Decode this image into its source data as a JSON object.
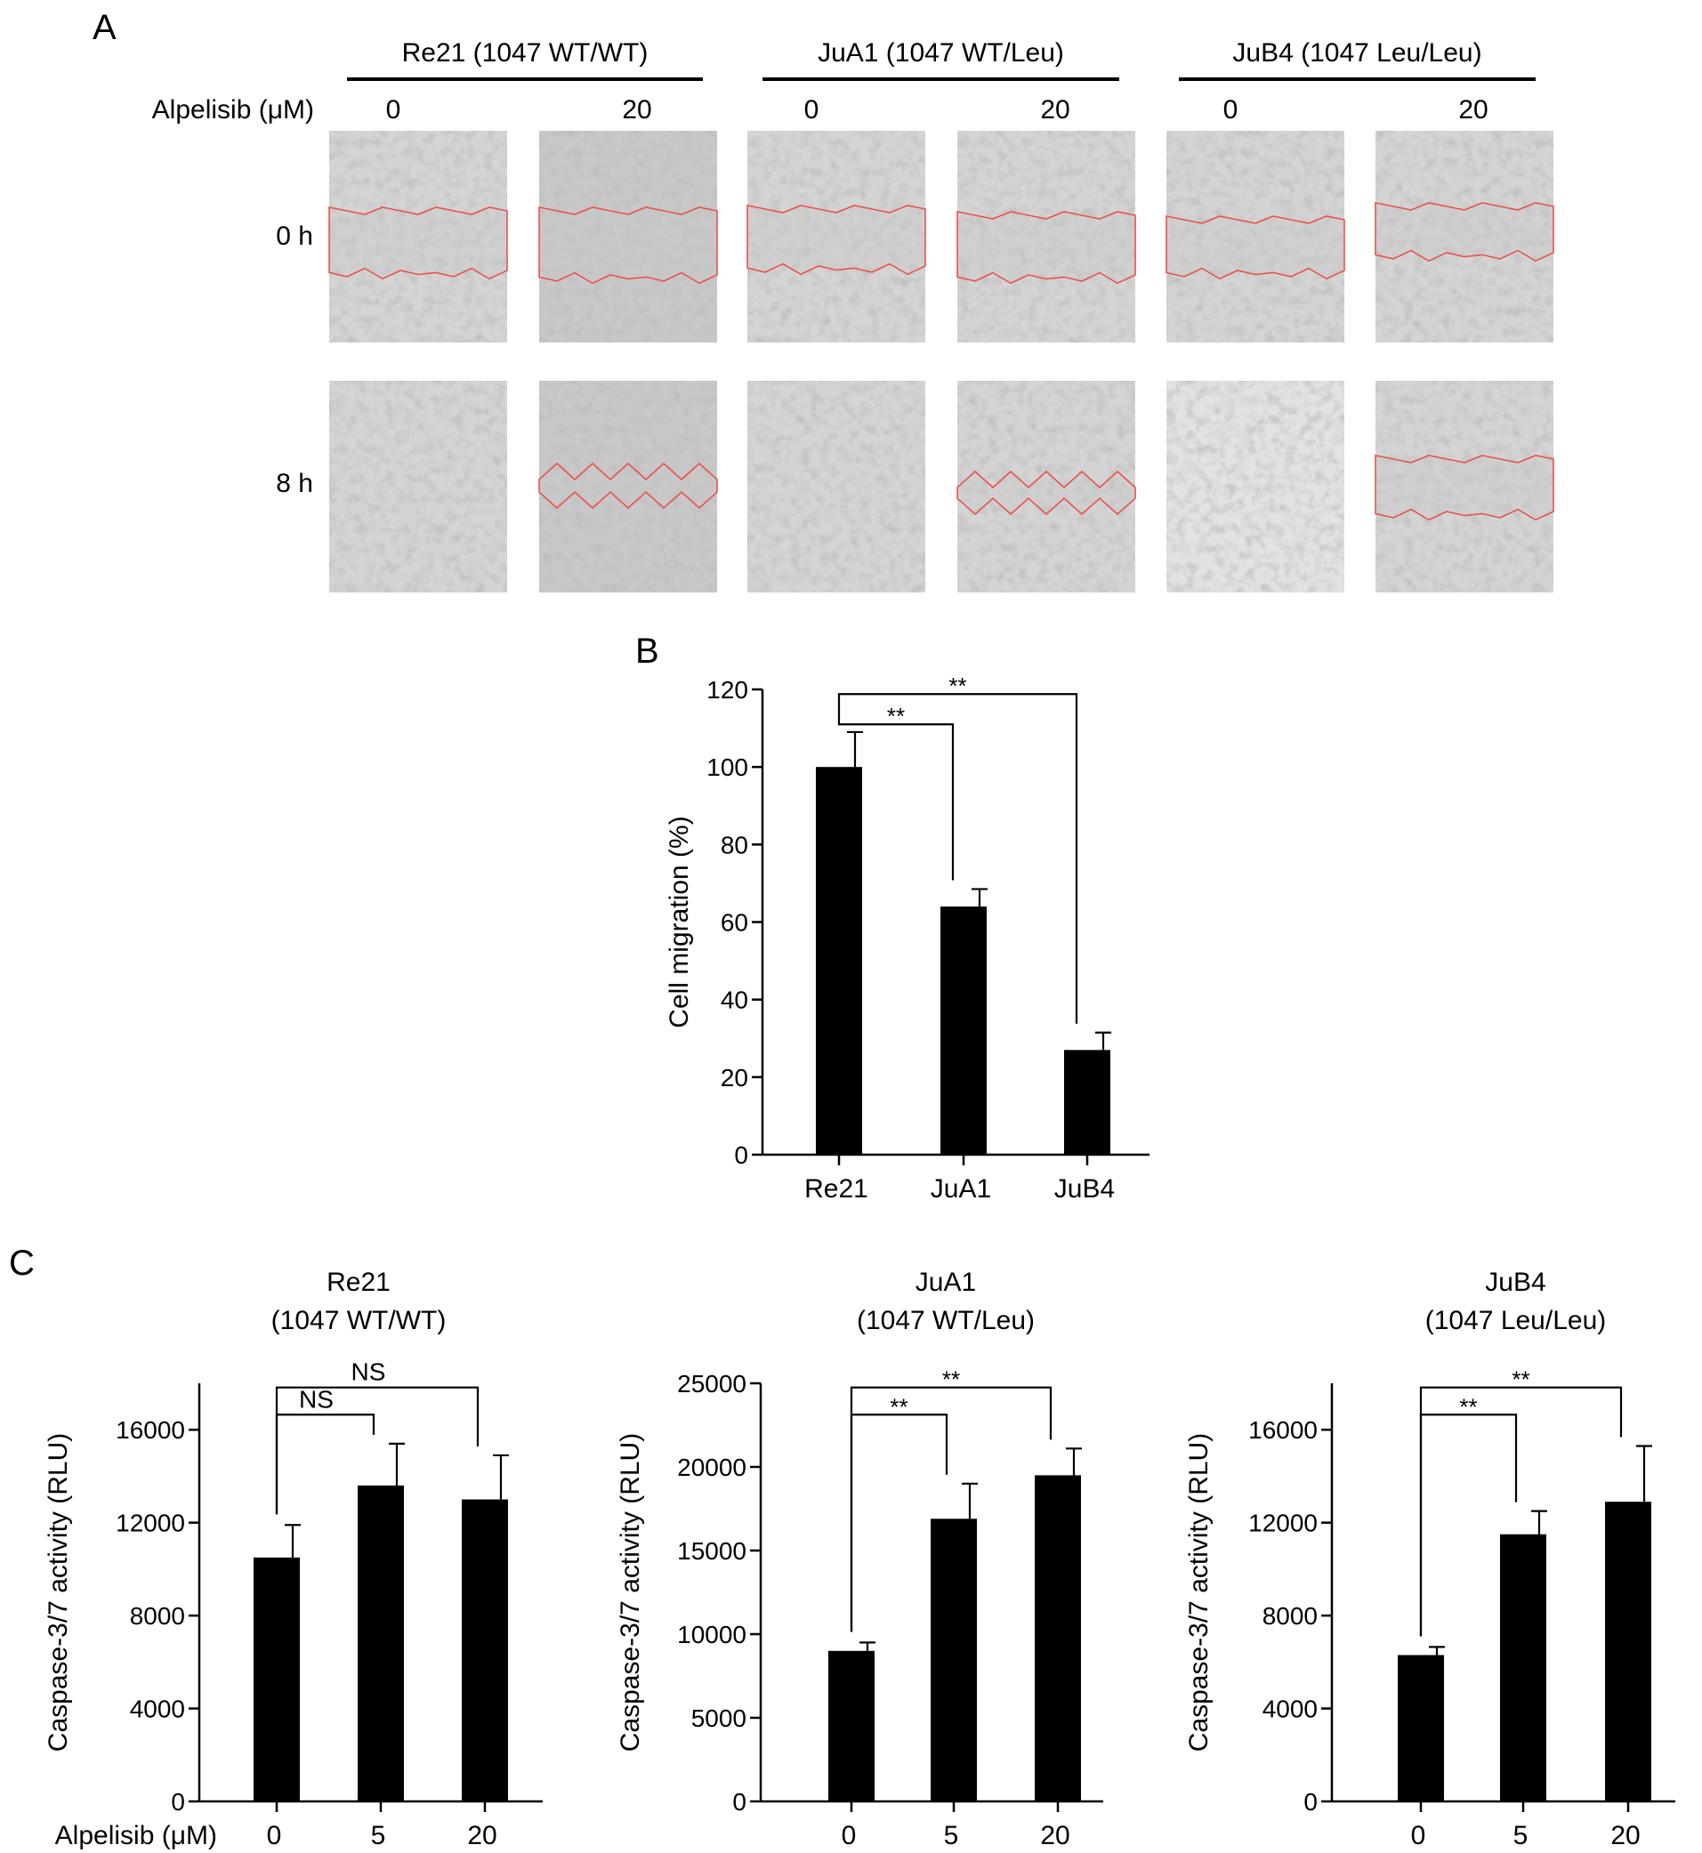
{
  "panel_a": {
    "label": "A",
    "dose_label": "Alpelisib (μM)",
    "time_labels": [
      "0 h",
      "8 h"
    ],
    "groups": [
      {
        "name": "Re21 (1047 WT/WT)",
        "doses": [
          "0",
          "20"
        ]
      },
      {
        "name": "JuA1 (1047 WT/Leu)",
        "doses": [
          "0",
          "20"
        ]
      },
      {
        "name": "JuB4 (1047 Leu/Leu)",
        "doses": [
          "0",
          "20"
        ]
      }
    ],
    "wound_outline_color": "#e8534f"
  },
  "chart_data": [
    {
      "id": "B",
      "type": "bar",
      "panel_label": "B",
      "title": "",
      "xlabel": "",
      "ylabel": "Cell migration (%)",
      "categories": [
        "Re21",
        "JuA1",
        "JuB4"
      ],
      "values": [
        100,
        64,
        27
      ],
      "errors": [
        9,
        4.5,
        4.5
      ],
      "ylim": [
        0,
        120
      ],
      "yticks": [
        0,
        20,
        40,
        60,
        80,
        100,
        120
      ],
      "significance": [
        {
          "from": 0,
          "to": 1,
          "label": "**"
        },
        {
          "from": 0,
          "to": 2,
          "label": "**"
        }
      ],
      "bar_color": "#000000"
    },
    {
      "id": "C1",
      "type": "bar",
      "panel_label": "C",
      "title": [
        "Re21",
        "(1047 WT/WT)"
      ],
      "xlabel": "Alpelisib (μM)",
      "ylabel": "Caspase-3/7 activity (RLU)",
      "categories": [
        "0",
        "5",
        "20"
      ],
      "values": [
        10500,
        13600,
        13000
      ],
      "errors": [
        1400,
        1800,
        1900
      ],
      "ylim": [
        0,
        18000
      ],
      "yticks": [
        0,
        4000,
        8000,
        12000,
        16000
      ],
      "significance": [
        {
          "from": 0,
          "to": 1,
          "label": "NS"
        },
        {
          "from": 0,
          "to": 2,
          "label": "NS"
        }
      ],
      "bar_color": "#000000"
    },
    {
      "id": "C2",
      "type": "bar",
      "title": [
        "JuA1",
        "(1047 WT/Leu)"
      ],
      "xlabel": "",
      "ylabel": "Caspase-3/7 activity (RLU)",
      "categories": [
        "0",
        "5",
        "20"
      ],
      "values": [
        9000,
        16900,
        19500
      ],
      "errors": [
        500,
        2100,
        1600
      ],
      "ylim": [
        0,
        25000
      ],
      "yticks": [
        0,
        5000,
        10000,
        15000,
        20000,
        25000
      ],
      "significance": [
        {
          "from": 0,
          "to": 1,
          "label": "**"
        },
        {
          "from": 0,
          "to": 2,
          "label": "**"
        }
      ],
      "bar_color": "#000000"
    },
    {
      "id": "C3",
      "type": "bar",
      "title": [
        "JuB4",
        "(1047 Leu/Leu)"
      ],
      "xlabel": "",
      "ylabel": "Caspase-3/7 activity (RLU)",
      "categories": [
        "0",
        "5",
        "20"
      ],
      "values": [
        6300,
        11500,
        12900
      ],
      "errors": [
        350,
        1000,
        2400
      ],
      "ylim": [
        0,
        18000
      ],
      "yticks": [
        0,
        4000,
        8000,
        12000,
        16000
      ],
      "significance": [
        {
          "from": 0,
          "to": 1,
          "label": "**"
        },
        {
          "from": 0,
          "to": 2,
          "label": "**"
        }
      ],
      "bar_color": "#000000"
    }
  ]
}
